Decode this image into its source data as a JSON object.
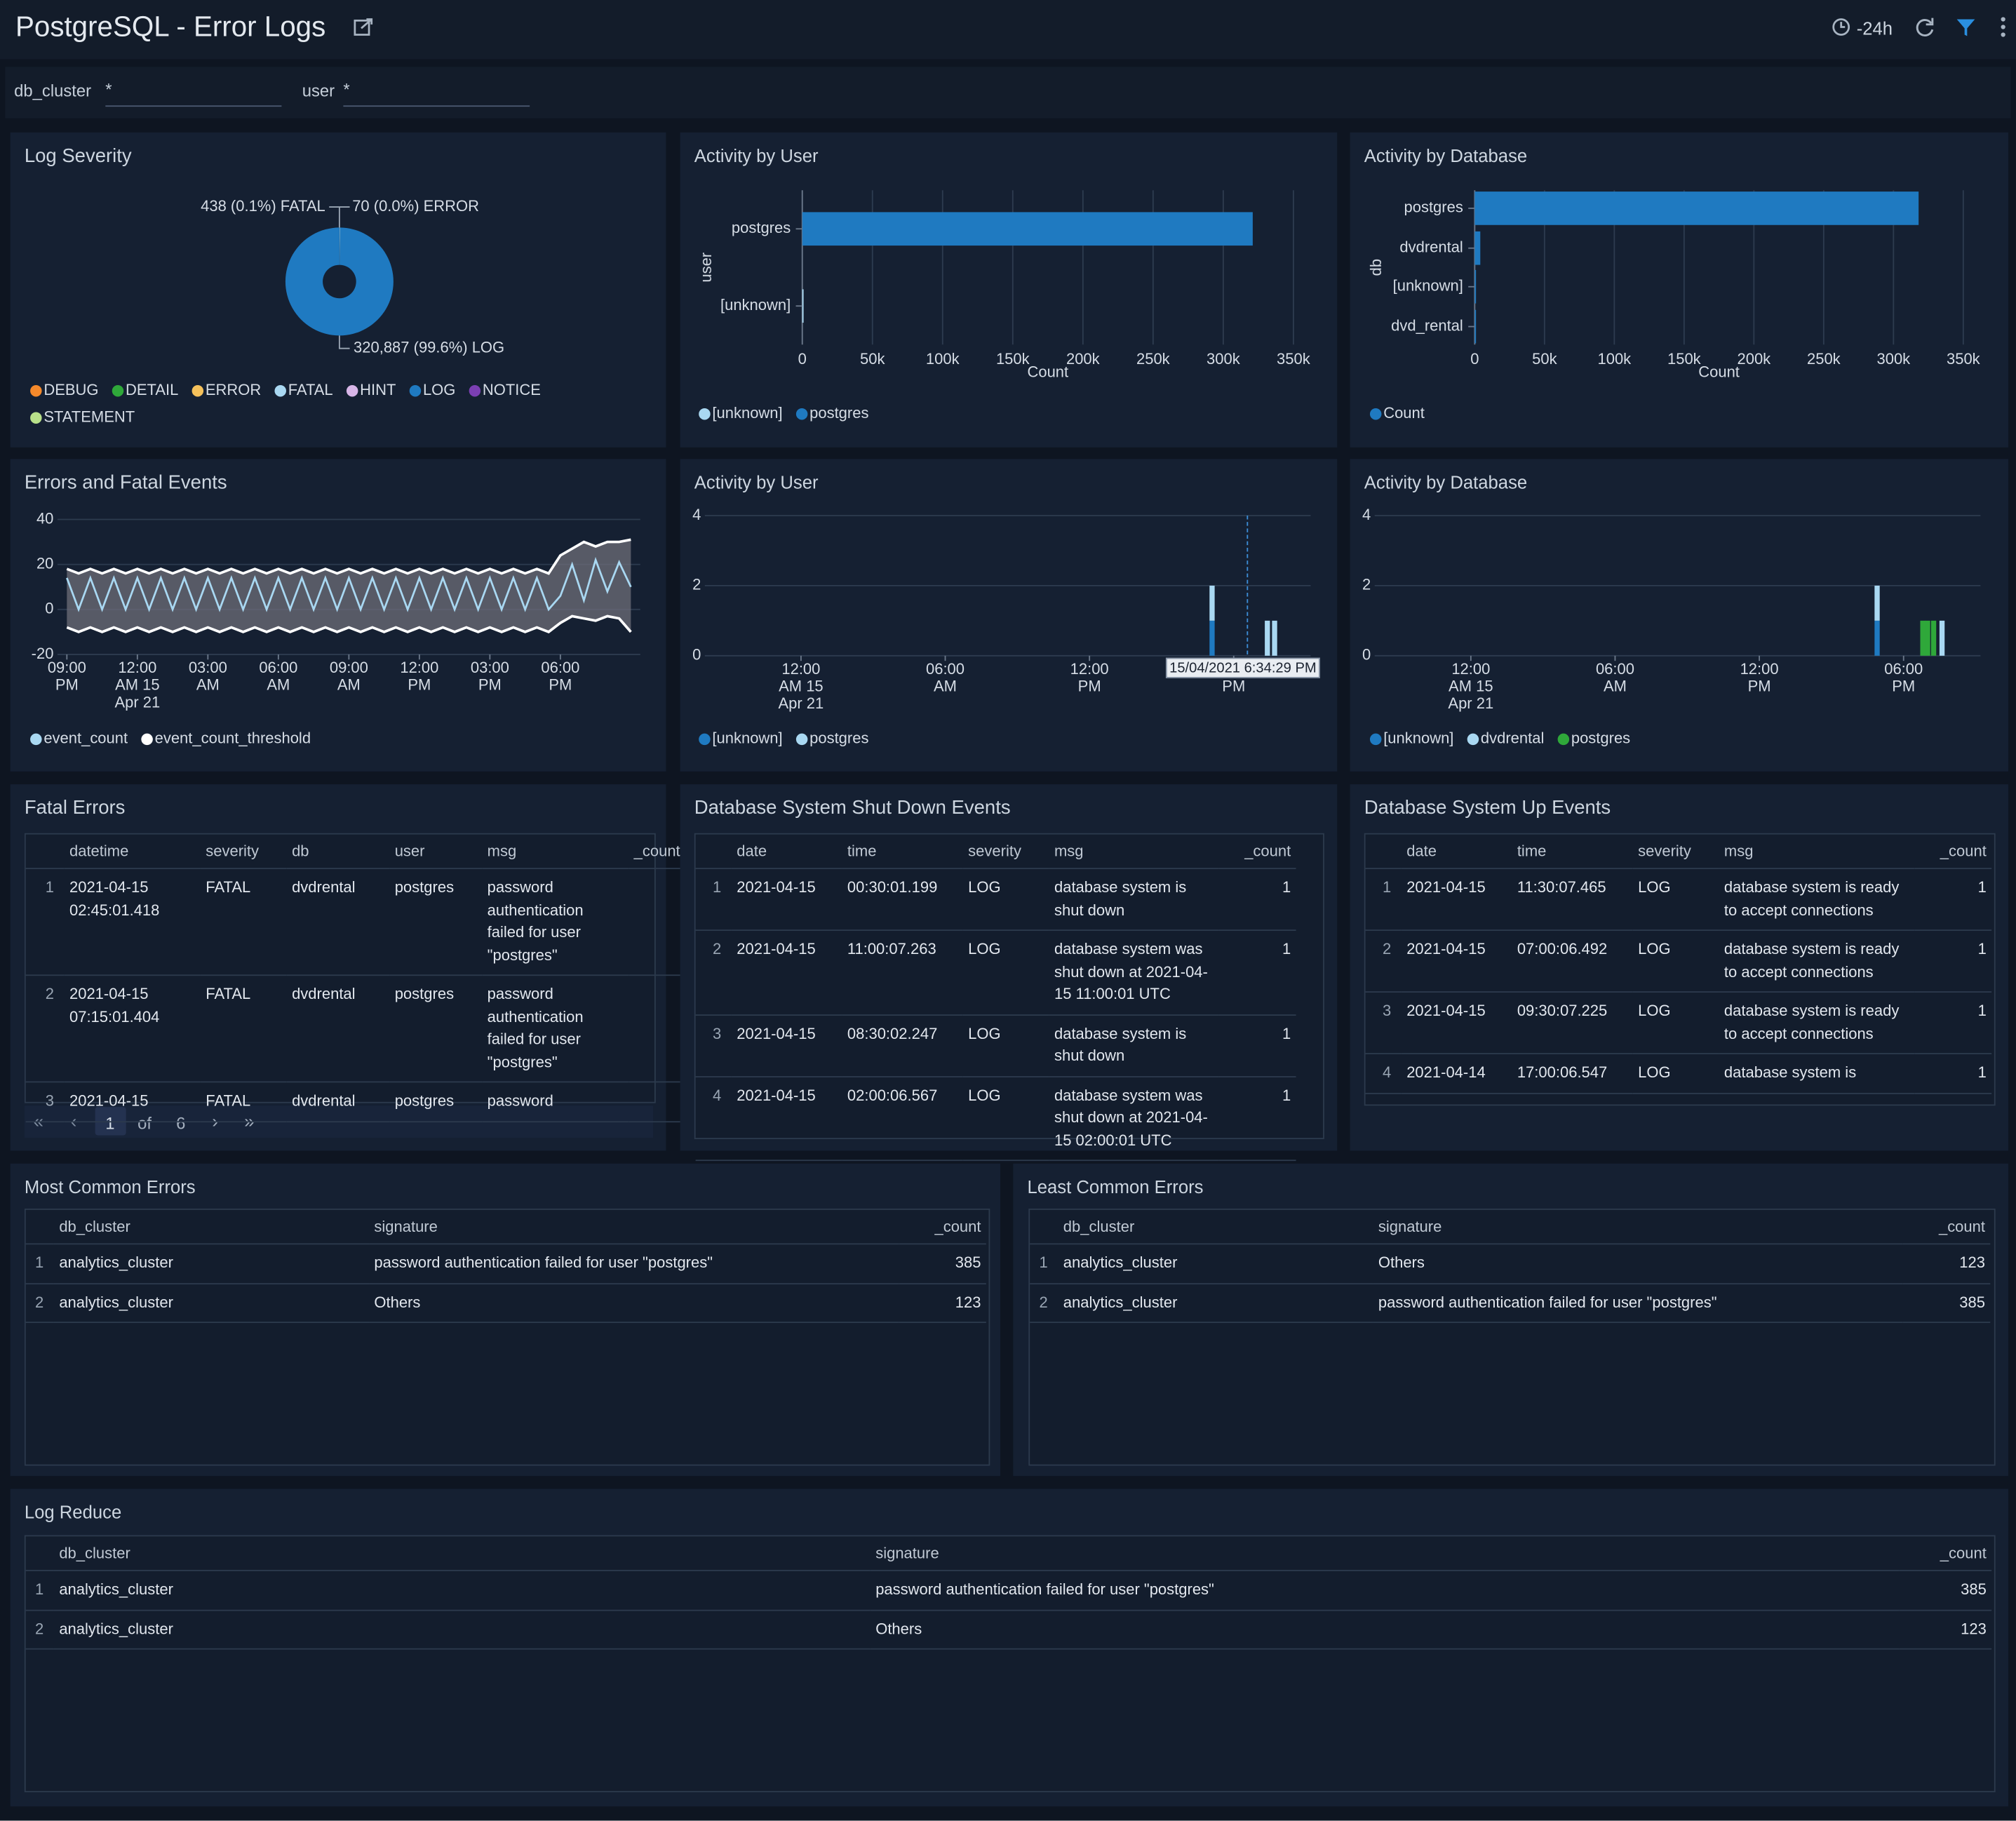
{
  "header": {
    "title": "PostgreSQL - Error Logs",
    "time_range": "-24h"
  },
  "filters": [
    {
      "label": "db_cluster",
      "value": "*"
    },
    {
      "label": "user",
      "value": "*"
    }
  ],
  "log_severity": {
    "title": "Log Severity",
    "type": "pie",
    "slices": [
      {
        "name": "FATAL",
        "value": 438,
        "label": "438 (0.1%) FATAL",
        "color": "#a9d8f2"
      },
      {
        "name": "ERROR",
        "value": 70,
        "label": "70 (0.0%) ERROR",
        "color": "#f5c15b"
      },
      {
        "name": "LOG",
        "value": 320887,
        "label": "320,887 (99.6%) LOG",
        "color": "#1f7ac1"
      }
    ],
    "legend": [
      {
        "name": "DEBUG",
        "color": "#f5892b"
      },
      {
        "name": "DETAIL",
        "color": "#2fa83a"
      },
      {
        "name": "ERROR",
        "color": "#f5c15b"
      },
      {
        "name": "FATAL",
        "color": "#a9d8f2"
      },
      {
        "name": "HINT",
        "color": "#d8b6e8"
      },
      {
        "name": "LOG",
        "color": "#1f7ac1"
      },
      {
        "name": "NOTICE",
        "color": "#7b3fb3"
      },
      {
        "name": "STATEMENT",
        "color": "#b8e08a"
      }
    ]
  },
  "activity_by_user": {
    "title": "Activity by User",
    "type": "bar",
    "orientation": "horizontal",
    "y_label": "user",
    "x_label": "Count",
    "categories": [
      "postgres",
      "[unknown]"
    ],
    "values": [
      321000,
      400
    ],
    "colors": [
      "#1f7ac1",
      "#a9d8f2"
    ],
    "xlim": [
      0,
      350000
    ],
    "xticks": [
      0,
      {
        "value": 50000,
        "label": "50k"
      },
      {
        "value": 100000,
        "label": "100k"
      },
      {
        "value": 150000,
        "label": "150k"
      },
      {
        "value": 200000,
        "label": "200k"
      },
      {
        "value": 250000,
        "label": "250k"
      },
      {
        "value": 300000,
        "label": "300k"
      },
      {
        "value": 350000,
        "label": "350k"
      }
    ],
    "legend": [
      {
        "name": "[unknown]",
        "color": "#a9d8f2"
      },
      {
        "name": "postgres",
        "color": "#1f7ac1"
      }
    ]
  },
  "activity_by_database": {
    "title": "Activity by Database",
    "type": "bar",
    "orientation": "horizontal",
    "y_label": "db",
    "x_label": "Count",
    "categories": [
      "postgres",
      "dvdrental",
      "[unknown]",
      "dvd_rental"
    ],
    "values": [
      318000,
      4000,
      400,
      100
    ],
    "colors": [
      "#1f7ac1",
      "#1f7ac1",
      "#1f7ac1",
      "#1f7ac1"
    ],
    "xlim": [
      0,
      350000
    ],
    "xticks": [
      0,
      {
        "value": 50000,
        "label": "50k"
      },
      {
        "value": 100000,
        "label": "100k"
      },
      {
        "value": 150000,
        "label": "150k"
      },
      {
        "value": 200000,
        "label": "200k"
      },
      {
        "value": 250000,
        "label": "250k"
      },
      {
        "value": 300000,
        "label": "300k"
      },
      {
        "value": 350000,
        "label": "350k"
      }
    ],
    "legend": [
      {
        "name": "Count",
        "color": "#1f7ac1"
      }
    ]
  },
  "errors_fatal": {
    "title": "Errors and Fatal Events",
    "type": "line",
    "x": [
      0,
      0.5,
      1,
      1.5,
      2,
      2.5,
      3,
      3.5,
      4,
      4.5,
      5,
      5.5,
      6,
      6.5,
      7,
      7.5,
      8,
      8.5,
      9,
      9.5,
      10,
      10.5,
      11,
      11.5,
      12,
      12.5,
      13,
      13.5,
      14,
      14.5,
      15,
      15.5,
      16,
      16.5,
      17,
      17.5,
      18,
      18.5,
      19,
      19.5,
      20,
      20.5,
      21,
      21.5,
      22,
      22.5,
      23,
      23.5,
      24
    ],
    "series": [
      {
        "name": "event_count",
        "color": "#a9d8f2",
        "values": [
          14,
          0,
          14,
          0,
          14,
          0,
          14,
          0,
          14,
          0,
          14,
          0,
          14,
          0,
          14,
          0,
          14,
          0,
          14,
          0,
          14,
          0,
          14,
          0,
          14,
          0,
          14,
          0,
          14,
          0,
          14,
          0,
          14,
          0,
          14,
          0,
          14,
          0,
          14,
          0,
          14,
          0,
          6,
          20,
          4,
          22,
          8,
          21,
          10
        ]
      },
      {
        "name": "event_count_threshold",
        "color": "#ffffff",
        "upper": [
          18,
          16,
          18,
          16,
          18,
          16,
          18,
          16,
          18,
          16,
          18,
          16,
          18,
          16,
          18,
          16,
          18,
          16,
          18,
          16,
          18,
          16,
          18,
          16,
          18,
          16,
          18,
          16,
          18,
          16,
          18,
          16,
          18,
          16,
          18,
          16,
          18,
          16,
          18,
          16,
          18,
          16,
          24,
          27,
          30,
          28,
          30,
          30,
          31
        ],
        "lower": [
          -8,
          -10,
          -8,
          -10,
          -8,
          -10,
          -8,
          -10,
          -8,
          -10,
          -8,
          -10,
          -8,
          -10,
          -8,
          -10,
          -8,
          -10,
          -8,
          -10,
          -8,
          -10,
          -8,
          -10,
          -8,
          -10,
          -8,
          -10,
          -8,
          -10,
          -8,
          -10,
          -8,
          -10,
          -8,
          -10,
          -8,
          -10,
          -8,
          -10,
          -8,
          -10,
          -6,
          -3,
          -4,
          -5,
          -3,
          -4,
          -10
        ]
      }
    ],
    "xlim": [
      -0.4,
      24.4
    ],
    "xticks": [
      {
        "value": 0,
        "label": [
          "09:00",
          "PM"
        ]
      },
      {
        "value": 3,
        "label": [
          "12:00",
          "AM 15",
          "Apr 21"
        ]
      },
      {
        "value": 6,
        "label": [
          "03:00",
          "AM"
        ]
      },
      {
        "value": 9,
        "label": [
          "06:00",
          "AM"
        ]
      },
      {
        "value": 12,
        "label": [
          "09:00",
          "AM"
        ]
      },
      {
        "value": 15,
        "label": [
          "12:00",
          "PM"
        ]
      },
      {
        "value": 18,
        "label": [
          "03:00",
          "PM"
        ]
      },
      {
        "value": 21,
        "label": [
          "06:00",
          "PM"
        ]
      }
    ],
    "ylim": [
      -20,
      40
    ],
    "yticks": [
      -20,
      0,
      20,
      40
    ]
  },
  "activity_user_time": {
    "title": "Activity by User",
    "type": "stacked-bar",
    "x": [
      17.1,
      19.4,
      19.7
    ],
    "series": [
      {
        "name": "[unknown]",
        "color": "#1f7ac1",
        "values": [
          1,
          null,
          null
        ]
      },
      {
        "name": "postgres",
        "color": "#a9d8f2",
        "values": [
          1,
          1,
          1
        ]
      }
    ],
    "xlim": [
      -4,
      21.2
    ],
    "xticks": [
      {
        "value": 0,
        "label": [
          "12:00",
          "AM 15",
          "Apr 21"
        ]
      },
      {
        "value": 6,
        "label": [
          "06:00",
          "AM"
        ]
      },
      {
        "value": 12,
        "label": [
          "12:00",
          "PM"
        ]
      },
      {
        "value": 18,
        "label": [
          "06:00",
          "PM"
        ]
      }
    ],
    "ylim": [
      0,
      4
    ],
    "yticks": [
      0,
      2,
      4
    ],
    "tooltip": {
      "x": 18.57,
      "text": "15/04/2021 6:34:29 PM"
    }
  },
  "activity_db_time": {
    "title": "Activity by Database",
    "type": "stacked-bar",
    "x": [
      16.9,
      18.8,
      19.0,
      19.25,
      19.6
    ],
    "series": [
      {
        "name": "[unknown]",
        "color": "#1f7ac1",
        "values": [
          1,
          null,
          null,
          null,
          null
        ]
      },
      {
        "name": "dvdrental",
        "color": "#a9d8f2",
        "values": [
          1,
          null,
          null,
          null,
          1
        ]
      },
      {
        "name": "postgres",
        "color": "#2fa83a",
        "values": [
          null,
          1,
          1,
          1,
          null
        ]
      }
    ],
    "xlim": [
      -4,
      21.2
    ],
    "xticks": [
      {
        "value": 0,
        "label": [
          "12:00",
          "AM 15",
          "Apr 21"
        ]
      },
      {
        "value": 6,
        "label": [
          "06:00",
          "AM"
        ]
      },
      {
        "value": 12,
        "label": [
          "12:00",
          "PM"
        ]
      },
      {
        "value": 18,
        "label": [
          "06:00",
          "PM"
        ]
      }
    ],
    "ylim": [
      0,
      4
    ],
    "yticks": [
      0,
      2,
      4
    ]
  },
  "fatal_errors": {
    "title": "Fatal Errors",
    "columns": [
      "datetime",
      "severity",
      "db",
      "user",
      "msg",
      "_count"
    ],
    "rows": [
      {
        "n": 1,
        "cells": [
          "2021-04-15 02:45:01.418",
          "FATAL",
          "dvdrental",
          "postgres",
          "password authentication failed for user \"postgres\""
        ]
      },
      {
        "n": 2,
        "cells": [
          "2021-04-15 07:15:01.404",
          "FATAL",
          "dvdrental",
          "postgres",
          "password authentication failed for user \"postgres\""
        ]
      },
      {
        "n": 3,
        "cells": [
          "2021-04-15",
          "FATAL",
          "dvdrental",
          "postgres",
          "password"
        ]
      }
    ],
    "pagination": {
      "page": 1,
      "of": "of",
      "pages": 6
    }
  },
  "shutdown_events": {
    "title": "Database System Shut Down Events",
    "columns": [
      "date",
      "time",
      "severity",
      "msg",
      "_count"
    ],
    "rows": [
      {
        "n": 1,
        "cells": [
          "2021-04-15",
          "00:30:01.199",
          "LOG",
          "database system is shut down",
          1
        ]
      },
      {
        "n": 2,
        "cells": [
          "2021-04-15",
          "11:00:07.263",
          "LOG",
          "database system was shut down at 2021-04-15 11:00:01 UTC",
          1
        ]
      },
      {
        "n": 3,
        "cells": [
          "2021-04-15",
          "08:30:02.247",
          "LOG",
          "database system is shut down",
          1
        ]
      },
      {
        "n": 4,
        "cells": [
          "2021-04-15",
          "02:00:06.567",
          "LOG",
          "database system was shut down at 2021-04-15 02:00:01 UTC",
          1
        ]
      }
    ]
  },
  "up_events": {
    "title": "Database System Up Events",
    "columns": [
      "date",
      "time",
      "severity",
      "msg",
      "_count"
    ],
    "rows": [
      {
        "n": 1,
        "cells": [
          "2021-04-15",
          "11:30:07.465",
          "LOG",
          "database system is ready to accept connections",
          1
        ]
      },
      {
        "n": 2,
        "cells": [
          "2021-04-15",
          "07:00:06.492",
          "LOG",
          "database system is ready to accept connections",
          1
        ]
      },
      {
        "n": 3,
        "cells": [
          "2021-04-15",
          "09:30:07.225",
          "LOG",
          "database system is ready to accept connections",
          1
        ]
      },
      {
        "n": 4,
        "cells": [
          "2021-04-14",
          "17:00:06.547",
          "LOG",
          "database system is",
          1
        ]
      }
    ]
  },
  "most_common_errors": {
    "title": "Most Common Errors",
    "columns": [
      "db_cluster",
      "signature",
      "_count"
    ],
    "rows": [
      {
        "n": 1,
        "cells": [
          "analytics_cluster",
          "password authentication failed for user \"postgres\"",
          385
        ]
      },
      {
        "n": 2,
        "cells": [
          "analytics_cluster",
          "Others",
          123
        ]
      }
    ]
  },
  "least_common_errors": {
    "title": "Least Common Errors",
    "columns": [
      "db_cluster",
      "signature",
      "_count"
    ],
    "rows": [
      {
        "n": 1,
        "cells": [
          "analytics_cluster",
          "Others",
          123
        ]
      },
      {
        "n": 2,
        "cells": [
          "analytics_cluster",
          "password authentication failed for user \"postgres\"",
          385
        ]
      }
    ]
  },
  "log_reduce": {
    "title": "Log Reduce",
    "columns": [
      "db_cluster",
      "signature",
      "_count"
    ],
    "rows": [
      {
        "n": 1,
        "cells": [
          "analytics_cluster",
          "password authentication failed for user \"postgres\"",
          385
        ]
      },
      {
        "n": 2,
        "cells": [
          "analytics_cluster",
          "Others",
          123
        ]
      }
    ]
  }
}
